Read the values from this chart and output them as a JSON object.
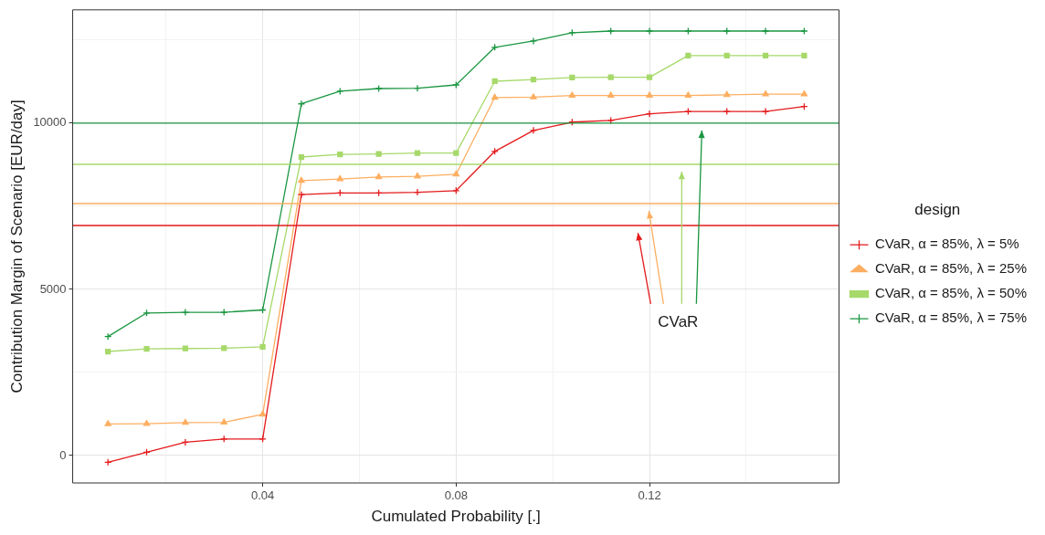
{
  "chart_data": {
    "type": "line",
    "xlabel": "Cumulated Probability [.]",
    "ylabel": "Contribution Margin of Scenario [EUR/day]",
    "legend_title": "design",
    "legend": "right",
    "grid": true,
    "x": [
      0.008,
      0.016,
      0.024,
      0.032,
      0.04,
      0.048,
      0.056,
      0.064,
      0.072,
      0.08,
      0.088,
      0.096,
      0.104,
      0.112,
      0.12,
      0.128,
      0.136,
      0.144,
      0.152
    ],
    "xlim": [
      0.0007,
      0.1592
    ],
    "xticks": [
      {
        "value": 0.02,
        "label": null
      },
      0.04,
      {
        "value": 0.06,
        "label": null
      },
      0.08,
      {
        "value": 0.1,
        "label": null
      },
      0.12,
      {
        "value": 0.14,
        "label": null
      }
    ],
    "ylim": [
      -824,
      13407
    ],
    "yticks": [
      0,
      {
        "value": 2500,
        "label": null
      },
      5000,
      {
        "value": 7500,
        "label": null
      },
      10000,
      {
        "value": 12500,
        "label": null
      }
    ],
    "series": [
      {
        "name": "CVaR, α = 85%, λ = 5%",
        "color": "#e41a1c",
        "marker": "cross",
        "values": [
          -200,
          100,
          400,
          500,
          500,
          7850,
          7900,
          7900,
          7920,
          7970,
          9150,
          9780,
          10030,
          10080,
          10280,
          10350,
          10350,
          10350,
          10500
        ]
      },
      {
        "name": "CVaR, α = 85%, λ = 25%",
        "color": "#fdae61",
        "marker": "triangle",
        "values": [
          950,
          960,
          990,
          1000,
          1240,
          8270,
          8320,
          8380,
          8400,
          8460,
          10770,
          10780,
          10830,
          10830,
          10830,
          10830,
          10850,
          10870,
          10870
        ]
      },
      {
        "name": "CVaR, α = 85%, λ = 50%",
        "color": "#a6d96a",
        "marker": "square",
        "values": [
          3130,
          3210,
          3220,
          3230,
          3270,
          8980,
          9060,
          9070,
          9100,
          9100,
          11260,
          11310,
          11370,
          11380,
          11380,
          12030,
          12030,
          12030,
          12030
        ]
      },
      {
        "name": "CVaR, α = 85%, λ = 75%",
        "color": "#1a9641",
        "marker": "cross",
        "values": [
          3580,
          4290,
          4310,
          4310,
          4380,
          10580,
          10960,
          11040,
          11050,
          11150,
          12280,
          12470,
          12720,
          12770,
          12770,
          12770,
          12770,
          12770,
          12770
        ]
      }
    ],
    "ref_lines": [
      {
        "axis": "y",
        "value": 6920,
        "color": "#e41a1c"
      },
      {
        "axis": "y",
        "value": 7580,
        "color": "#fdae61"
      },
      {
        "axis": "y",
        "value": 8760,
        "color": "#a6d96a"
      },
      {
        "axis": "y",
        "value": 10000,
        "color": "#1a9641"
      }
    ],
    "annotations": [
      "CVaR"
    ]
  }
}
